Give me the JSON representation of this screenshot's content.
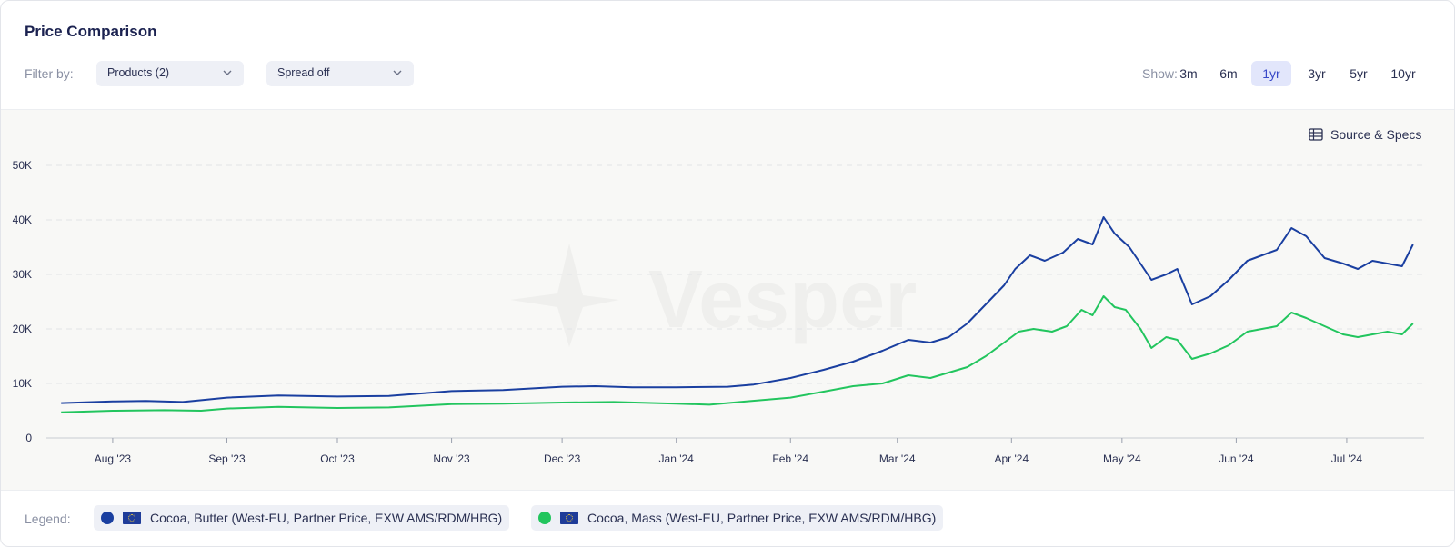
{
  "header": {
    "title": "Price Comparison"
  },
  "filter": {
    "label": "Filter by:",
    "products_value": "Products (2)",
    "spread_value": "Spread off"
  },
  "show": {
    "label": "Show:",
    "ranges": [
      "3m",
      "6m",
      "1yr",
      "3yr",
      "5yr",
      "10yr"
    ],
    "active": "1yr"
  },
  "source_specs_label": "Source & Specs",
  "watermark": "Vesper",
  "legend": {
    "label": "Legend:",
    "items": [
      {
        "label": "Cocoa, Butter (West-EU, Partner Price, EXW AMS/RDM/HBG)",
        "color": "#1a3fa0",
        "flag": "eu-flag-icon"
      },
      {
        "label": "Cocoa, Mass (West-EU, Partner Price, EXW AMS/RDM/HBG)",
        "color": "#22c55e",
        "flag": "eu-flag-icon"
      }
    ]
  },
  "chart_data": {
    "type": "line",
    "title": "",
    "xlabel": "",
    "ylabel": "",
    "ylim": [
      0,
      50000
    ],
    "y_ticks": [
      0,
      10000,
      20000,
      30000,
      40000,
      50000
    ],
    "y_tick_labels": [
      "0",
      "10K",
      "20K",
      "30K",
      "40K",
      "50K"
    ],
    "x_ticks": [
      "2023-08-01",
      "2023-09-01",
      "2023-10-01",
      "2023-11-01",
      "2023-12-01",
      "2024-01-01",
      "2024-02-01",
      "2024-03-01",
      "2024-04-01",
      "2024-05-01",
      "2024-06-01",
      "2024-07-01"
    ],
    "x_tick_labels": [
      "Aug '23",
      "Sep '23",
      "Oct '23",
      "Nov '23",
      "Dec '23",
      "Jan '24",
      "Feb '24",
      "Mar '24",
      "Apr '24",
      "May '24",
      "Jun '24",
      "Jul '24"
    ],
    "grid": "horizontal dashed",
    "series": [
      {
        "name": "Cocoa, Butter (West-EU, Partner Price, EXW AMS/RDM/HBG)",
        "color": "#1a3fa0",
        "points": [
          [
            "2023-07-18",
            6400
          ],
          [
            "2023-08-01",
            6700
          ],
          [
            "2023-08-10",
            6800
          ],
          [
            "2023-08-20",
            6600
          ],
          [
            "2023-09-01",
            7400
          ],
          [
            "2023-09-15",
            7800
          ],
          [
            "2023-10-01",
            7600
          ],
          [
            "2023-10-15",
            7700
          ],
          [
            "2023-11-01",
            8600
          ],
          [
            "2023-11-15",
            8800
          ],
          [
            "2023-12-01",
            9400
          ],
          [
            "2023-12-10",
            9500
          ],
          [
            "2023-12-20",
            9300
          ],
          [
            "2024-01-01",
            9300
          ],
          [
            "2024-01-15",
            9400
          ],
          [
            "2024-01-22",
            9800
          ],
          [
            "2024-02-01",
            11000
          ],
          [
            "2024-02-10",
            12500
          ],
          [
            "2024-02-18",
            14000
          ],
          [
            "2024-02-26",
            16000
          ],
          [
            "2024-03-04",
            18000
          ],
          [
            "2024-03-10",
            17500
          ],
          [
            "2024-03-15",
            18500
          ],
          [
            "2024-03-20",
            21000
          ],
          [
            "2024-03-25",
            24500
          ],
          [
            "2024-03-30",
            28000
          ],
          [
            "2024-04-02",
            31000
          ],
          [
            "2024-04-06",
            33500
          ],
          [
            "2024-04-10",
            32500
          ],
          [
            "2024-04-15",
            34000
          ],
          [
            "2024-04-19",
            36500
          ],
          [
            "2024-04-23",
            35500
          ],
          [
            "2024-04-26",
            40500
          ],
          [
            "2024-04-29",
            37500
          ],
          [
            "2024-05-03",
            35000
          ],
          [
            "2024-05-06",
            32000
          ],
          [
            "2024-05-09",
            29000
          ],
          [
            "2024-05-13",
            30000
          ],
          [
            "2024-05-16",
            31000
          ],
          [
            "2024-05-20",
            24500
          ],
          [
            "2024-05-25",
            26000
          ],
          [
            "2024-05-30",
            29000
          ],
          [
            "2024-06-04",
            32500
          ],
          [
            "2024-06-08",
            33500
          ],
          [
            "2024-06-12",
            34500
          ],
          [
            "2024-06-16",
            38500
          ],
          [
            "2024-06-20",
            37000
          ],
          [
            "2024-06-25",
            33000
          ],
          [
            "2024-06-30",
            32000
          ],
          [
            "2024-07-04",
            31000
          ],
          [
            "2024-07-08",
            32500
          ],
          [
            "2024-07-12",
            32000
          ],
          [
            "2024-07-16",
            31500
          ],
          [
            "2024-07-19",
            35500
          ]
        ]
      },
      {
        "name": "Cocoa, Mass (West-EU, Partner Price, EXW AMS/RDM/HBG)",
        "color": "#22c55e",
        "points": [
          [
            "2023-07-18",
            4700
          ],
          [
            "2023-08-01",
            5000
          ],
          [
            "2023-08-15",
            5100
          ],
          [
            "2023-08-25",
            5000
          ],
          [
            "2023-09-01",
            5400
          ],
          [
            "2023-09-15",
            5700
          ],
          [
            "2023-10-01",
            5500
          ],
          [
            "2023-10-15",
            5600
          ],
          [
            "2023-11-01",
            6200
          ],
          [
            "2023-11-15",
            6300
          ],
          [
            "2023-12-01",
            6500
          ],
          [
            "2023-12-15",
            6600
          ],
          [
            "2024-01-01",
            6300
          ],
          [
            "2024-01-10",
            6100
          ],
          [
            "2024-01-20",
            6700
          ],
          [
            "2024-02-01",
            7400
          ],
          [
            "2024-02-10",
            8500
          ],
          [
            "2024-02-18",
            9500
          ],
          [
            "2024-02-26",
            10000
          ],
          [
            "2024-03-04",
            11500
          ],
          [
            "2024-03-10",
            11000
          ],
          [
            "2024-03-15",
            12000
          ],
          [
            "2024-03-20",
            13000
          ],
          [
            "2024-03-25",
            15000
          ],
          [
            "2024-03-30",
            17500
          ],
          [
            "2024-04-03",
            19500
          ],
          [
            "2024-04-07",
            20000
          ],
          [
            "2024-04-12",
            19500
          ],
          [
            "2024-04-16",
            20500
          ],
          [
            "2024-04-20",
            23500
          ],
          [
            "2024-04-23",
            22500
          ],
          [
            "2024-04-26",
            26000
          ],
          [
            "2024-04-29",
            24000
          ],
          [
            "2024-05-02",
            23500
          ],
          [
            "2024-05-06",
            20000
          ],
          [
            "2024-05-09",
            16500
          ],
          [
            "2024-05-13",
            18500
          ],
          [
            "2024-05-16",
            18000
          ],
          [
            "2024-05-20",
            14500
          ],
          [
            "2024-05-25",
            15500
          ],
          [
            "2024-05-30",
            17000
          ],
          [
            "2024-06-04",
            19500
          ],
          [
            "2024-06-08",
            20000
          ],
          [
            "2024-06-12",
            20500
          ],
          [
            "2024-06-16",
            23000
          ],
          [
            "2024-06-20",
            22000
          ],
          [
            "2024-06-25",
            20500
          ],
          [
            "2024-06-30",
            19000
          ],
          [
            "2024-07-04",
            18500
          ],
          [
            "2024-07-08",
            19000
          ],
          [
            "2024-07-12",
            19500
          ],
          [
            "2024-07-16",
            19000
          ],
          [
            "2024-07-19",
            21000
          ]
        ]
      }
    ]
  }
}
